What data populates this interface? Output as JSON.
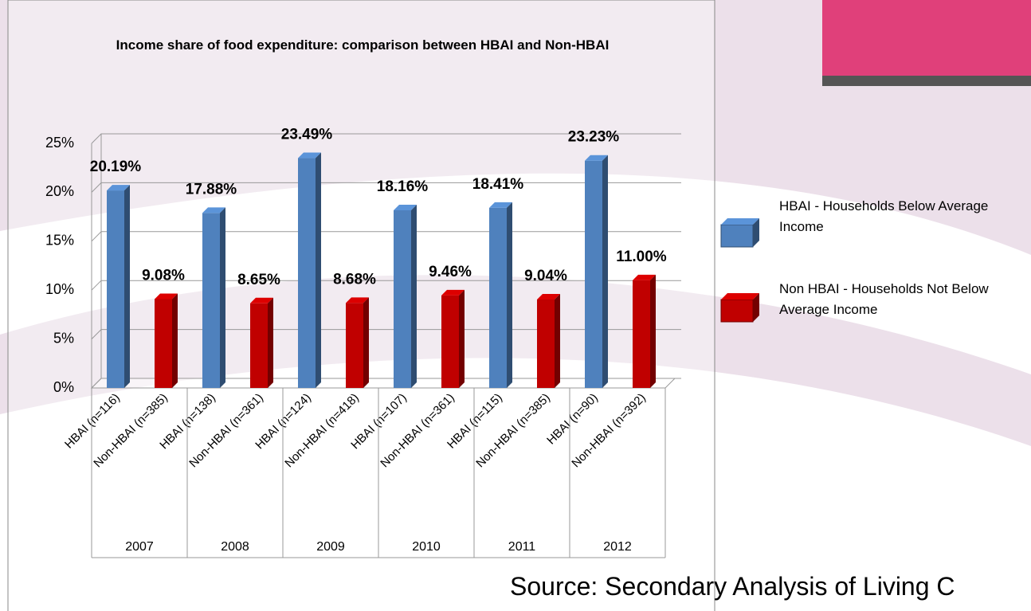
{
  "chart_data": {
    "type": "bar3d",
    "title": "Income share of food expenditure: comparison between HBAI and Non-HBAI",
    "categories": [
      "HBAI (n=116)",
      "Non-HBAI (n=385)",
      "HBAI (n=138)",
      "Non-HBAI (n=361)",
      "HBAI (n=124)",
      "Non-HBAI (n=418)",
      "HBAI (n=107)",
      "Non-HBAI (n=361)",
      "HBAI (n=115)",
      "Non-HBAI (n=385)",
      "HBAI (n=90)",
      "Non-HBAI (n=392)"
    ],
    "groups": [
      "2007",
      "2008",
      "2009",
      "2010",
      "2011",
      "2012"
    ],
    "series": [
      {
        "name": "HBAI  - Households Below Average Income",
        "color": "#4f81bd",
        "values": [
          20.19,
          null,
          17.88,
          null,
          23.49,
          null,
          18.16,
          null,
          18.41,
          null,
          23.23,
          null
        ],
        "value_labels": [
          "20.19%",
          null,
          "17.88%",
          null,
          "23.49%",
          null,
          "18.16%",
          null,
          "18.41%",
          null,
          "23.23%",
          null
        ]
      },
      {
        "name": "Non HBAI  - Households Not Below Average Income",
        "color": "#c00000",
        "values": [
          null,
          9.08,
          null,
          8.65,
          null,
          8.68,
          null,
          9.46,
          null,
          9.04,
          null,
          11.0
        ],
        "value_labels": [
          null,
          "9.08%",
          null,
          "8.65%",
          null,
          "8.68%",
          null,
          "9.46%",
          null,
          "9.04%",
          null,
          "11.00%"
        ]
      }
    ],
    "ylim": [
      0,
      25
    ],
    "yticks": [
      {
        "value": 0,
        "label": "0%"
      },
      {
        "value": 5,
        "label": "5%"
      },
      {
        "value": 10,
        "label": "10%"
      },
      {
        "value": 15,
        "label": "15%"
      },
      {
        "value": 20,
        "label": "20%"
      },
      {
        "value": 25,
        "label": "25%"
      }
    ],
    "grid": true
  },
  "source": "Source: Secondary Analysis of Living C"
}
